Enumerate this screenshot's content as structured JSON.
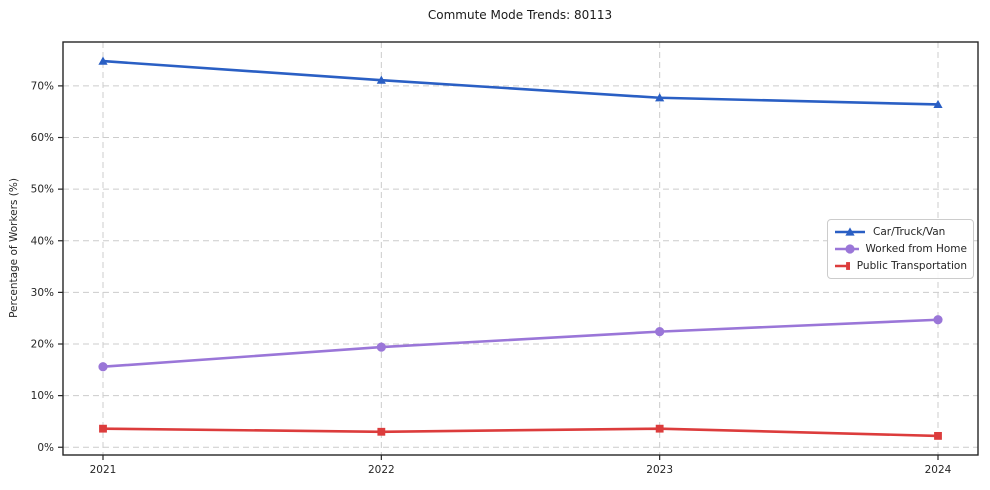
{
  "title": "Commute Mode Trends: 80113",
  "chart_data": {
    "type": "line",
    "title": "Commute Mode Trends: 80113",
    "xlabel": "",
    "ylabel": "Percentage of Workers (%)",
    "x": [
      2021,
      2022,
      2023,
      2024
    ],
    "x_tick_labels": [
      "2021",
      "2022",
      "2023",
      "2024"
    ],
    "series": [
      {
        "name": "Car/Truck/Van",
        "values": [
          74.8,
          71.1,
          67.7,
          66.4
        ],
        "color": "#2a5fc4",
        "marker": "triangle"
      },
      {
        "name": "Worked from Home",
        "values": [
          15.6,
          19.4,
          22.4,
          24.7
        ],
        "color": "#9a76d8",
        "marker": "circle"
      },
      {
        "name": "Public Transportation",
        "values": [
          3.6,
          3.0,
          3.6,
          2.2
        ],
        "color": "#dc3c3c",
        "marker": "square"
      }
    ],
    "yticks": [
      0,
      10,
      20,
      30,
      40,
      50,
      60,
      70
    ],
    "ytick_labels": [
      "0%",
      "10%",
      "20%",
      "30%",
      "40%",
      "50%",
      "60%",
      "70%"
    ],
    "ylim": [
      -1.5,
      78.5
    ],
    "grid": true,
    "grid_style": "dashed",
    "grid_color": "#cccccc",
    "spine_color": "#262626",
    "legend_position": "center-right"
  }
}
